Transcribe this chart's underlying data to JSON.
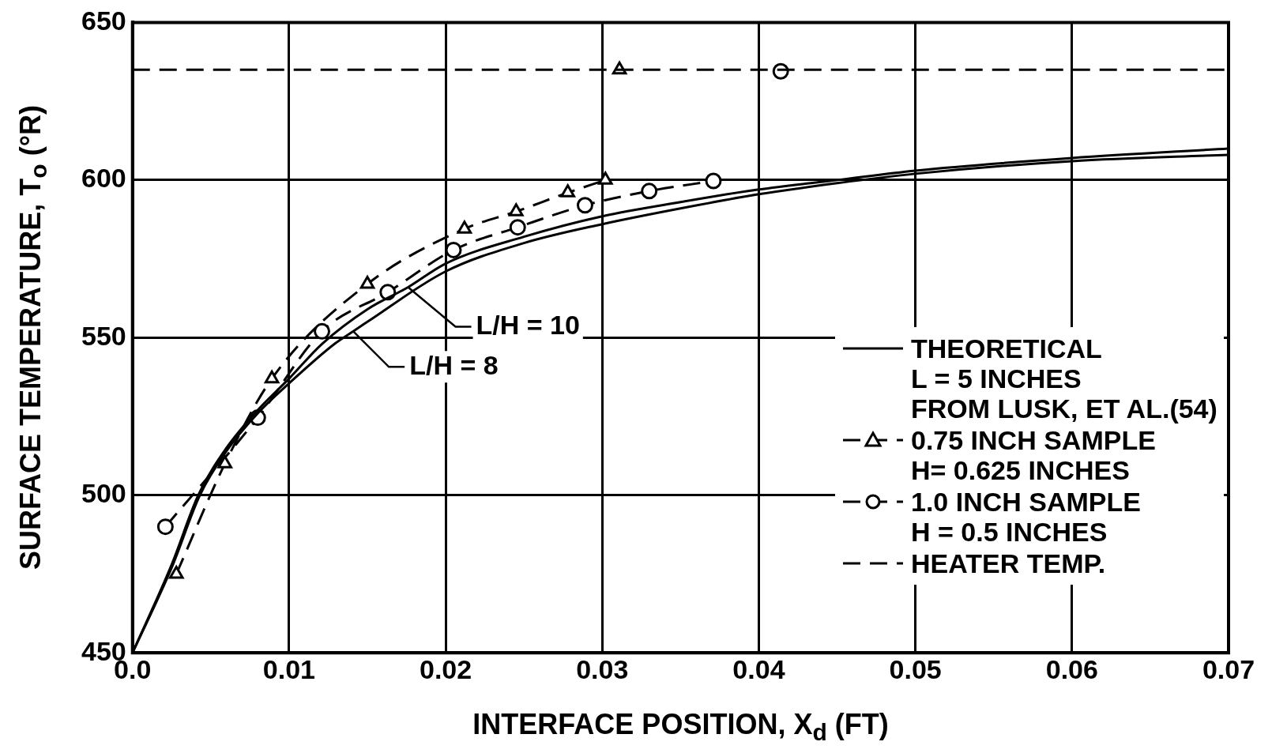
{
  "chart_data": {
    "type": "line",
    "xlabel": "INTERFACE POSITION, X$_{d}$ (FT)",
    "ylabel": "SURFACE TEMPERATURE, T$_{o}$ (°R)",
    "xlim": [
      0,
      0.07
    ],
    "xticks": [
      {
        "value": 0,
        "label": "0.0"
      },
      0.01,
      0.02,
      0.03,
      0.04,
      0.05,
      0.06,
      0.07
    ],
    "ylim": [
      450,
      650
    ],
    "yticks": [
      450,
      500,
      550,
      600,
      650
    ],
    "grid": true,
    "legend": "right",
    "series": [
      {
        "name": "L/H = 10",
        "color": "#000000",
        "marker": "none",
        "line_style": "solid",
        "x": [
          0,
          0.0025,
          0.0042,
          0.006,
          0.008,
          0.01,
          0.0121,
          0.015,
          0.0176,
          0.02,
          0.025,
          0.03,
          0.035,
          0.04,
          0.045,
          0.05,
          0.06,
          0.07
        ],
        "values": [
          450,
          478,
          500,
          515,
          527,
          537,
          548,
          559,
          566,
          573.5,
          582,
          588.5,
          593,
          597,
          600,
          603,
          607,
          610
        ]
      },
      {
        "name": "L/H = 8",
        "color": "#000000",
        "marker": "none",
        "line_style": "solid",
        "x": [
          0,
          0.0025,
          0.0043,
          0.006,
          0.008,
          0.01,
          0.0129,
          0.0141,
          0.015,
          0.02,
          0.025,
          0.03,
          0.035,
          0.04,
          0.045,
          0.05,
          0.06,
          0.07
        ],
        "values": [
          450,
          477,
          500,
          514,
          526,
          535.5,
          548,
          552,
          555,
          571,
          580,
          586,
          591,
          595.5,
          599,
          602,
          606,
          608
        ]
      },
      {
        "name": "0.75 INCH  SAMPLE\nH= 0.625 INCHES",
        "color": "#000000",
        "marker": "triangle",
        "line_style": "dashed",
        "x": [
          0.0028,
          0.0059,
          0.0089,
          0.015,
          0.0212,
          0.0245,
          0.0278,
          0.0302
        ],
        "values": [
          475,
          510,
          537,
          567,
          584.5,
          590,
          596,
          600
        ]
      },
      {
        "name": "1.0 INCH  SAMPLE\nH = 0.5  INCHES",
        "color": "#000000",
        "marker": "circle",
        "line_style": "dashed",
        "x": [
          0.0021,
          0.008,
          0.0121,
          0.0163,
          0.0205,
          0.0246,
          0.0289,
          0.033,
          0.0371
        ],
        "values": [
          490,
          524.6,
          552,
          564.4,
          577.8,
          585,
          592,
          596.5,
          599.7
        ]
      },
      {
        "type": "scatter",
        "color": "#000000",
        "marker": "triangle",
        "x": [
          0.0311
        ],
        "values": [
          635
        ]
      },
      {
        "type": "scatter",
        "color": "#000000",
        "marker": "circle",
        "x": [
          0.0414
        ],
        "values": [
          634.5
        ]
      }
    ],
    "ref_lines": [
      {
        "axis": "y",
        "value": 635,
        "label": "HEATER  TEMP.",
        "line_style": "dashed",
        "color": "#000000"
      }
    ],
    "annotations": [
      "THEORETICAL\nL = 5  INCHES\nFROM  LUSK, ET AL.(54)"
    ]
  }
}
